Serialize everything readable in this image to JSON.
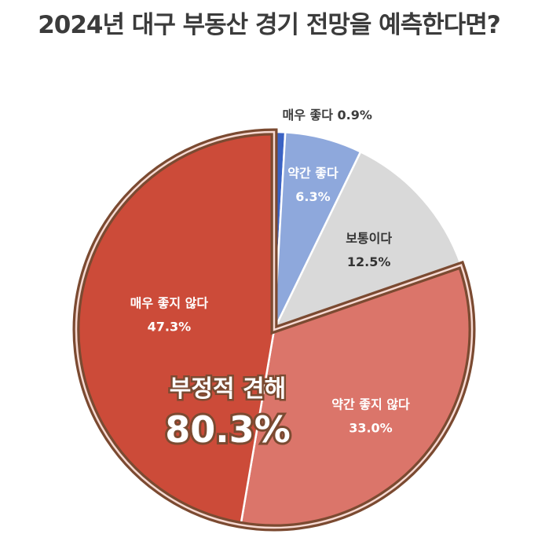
{
  "title": "2024년 대구 부동산 경기 전망을 예측한다면?",
  "chart_data": {
    "type": "pie",
    "title": "2024년 대구 부동산 경기 전망을 예측한다면?",
    "slices": [
      {
        "label": "매우 좋다",
        "value": 0.9,
        "value_label": "0.9%",
        "color": "#3a62c4"
      },
      {
        "label": "약간 좋다",
        "value": 6.3,
        "value_label": "6.3%",
        "color": "#8ea8dc"
      },
      {
        "label": "보통이다",
        "value": 12.5,
        "value_label": "12.5%",
        "color": "#d9d9d9"
      },
      {
        "label": "약간 좋지 않다",
        "value": 33.0,
        "value_label": "33.0%",
        "color": "#db756a"
      },
      {
        "label": "매우 좋지 않다",
        "value": 47.3,
        "value_label": "47.3%",
        "color": "#cc4b39"
      }
    ],
    "group_highlight": {
      "label": "부정적 견해",
      "value": 80.3,
      "value_label": "80.3%",
      "members": [
        "약간 좋지 않다",
        "매우 좋지 않다"
      ],
      "outline_color": "#7b4a31"
    },
    "legend": "none"
  }
}
